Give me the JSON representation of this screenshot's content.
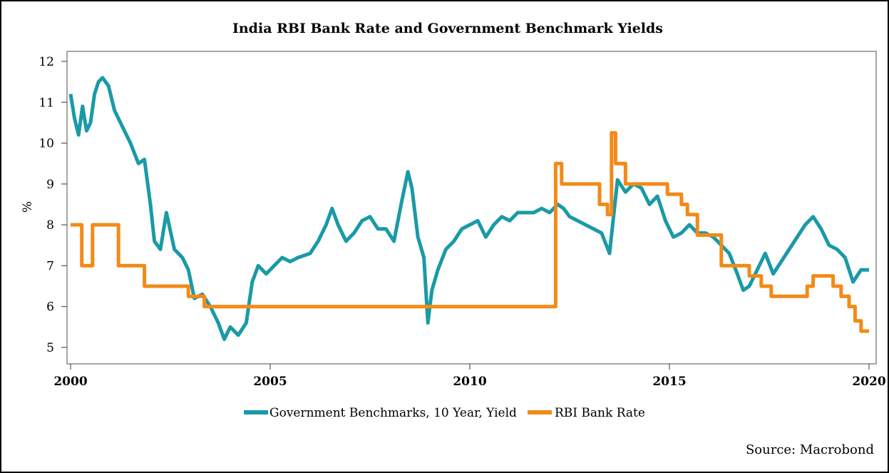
{
  "chart_data": {
    "type": "line",
    "title": "India RBI Bank Rate and Government Benchmark Yields",
    "ylabel": "%",
    "xlabel": "",
    "xlim": [
      2000,
      2020
    ],
    "ylim": [
      4.8,
      12.3
    ],
    "x_ticks": [
      2000,
      2005,
      2010,
      2015,
      2020
    ],
    "x_tick_labels": [
      "2000",
      "2005",
      "2010",
      "2015",
      "2020"
    ],
    "y_ticks": [
      5,
      6,
      7,
      8,
      9,
      10,
      11,
      12
    ],
    "y_tick_labels": [
      "5",
      "6",
      "7",
      "8",
      "9",
      "10",
      "11",
      "12"
    ],
    "grid": false,
    "legend_position": "bottom",
    "source": "Source: Macrobond",
    "series": [
      {
        "name": "Government Benchmarks, 10 Year, Yield",
        "color": "#1a9aa6",
        "step": false,
        "x": [
          2000.0,
          2000.1,
          2000.2,
          2000.3,
          2000.4,
          2000.5,
          2000.6,
          2000.7,
          2000.8,
          2000.95,
          2001.1,
          2001.3,
          2001.5,
          2001.7,
          2001.85,
          2002.0,
          2002.1,
          2002.25,
          2002.4,
          2002.6,
          2002.8,
          2002.95,
          2003.1,
          2003.3,
          2003.5,
          2003.7,
          2003.85,
          2004.0,
          2004.2,
          2004.4,
          2004.55,
          2004.7,
          2004.9,
          2005.1,
          2005.3,
          2005.5,
          2005.7,
          2006.0,
          2006.2,
          2006.4,
          2006.55,
          2006.7,
          2006.9,
          2007.1,
          2007.3,
          2007.5,
          2007.7,
          2007.9,
          2008.1,
          2008.3,
          2008.45,
          2008.55,
          2008.7,
          2008.85,
          2008.95,
          2009.05,
          2009.2,
          2009.4,
          2009.6,
          2009.8,
          2010.0,
          2010.2,
          2010.4,
          2010.6,
          2010.8,
          2011.0,
          2011.2,
          2011.4,
          2011.6,
          2011.8,
          2012.0,
          2012.2,
          2012.35,
          2012.5,
          2012.7,
          2012.9,
          2013.1,
          2013.3,
          2013.5,
          2013.6,
          2013.7,
          2013.9,
          2014.1,
          2014.3,
          2014.5,
          2014.7,
          2014.9,
          2015.1,
          2015.3,
          2015.5,
          2015.7,
          2015.9,
          2016.1,
          2016.3,
          2016.5,
          2016.7,
          2016.85,
          2017.0,
          2017.2,
          2017.4,
          2017.6,
          2017.8,
          2018.0,
          2018.2,
          2018.4,
          2018.6,
          2018.8,
          2019.0,
          2019.2,
          2019.4,
          2019.6,
          2019.8,
          2020.0
        ],
        "values": [
          11.2,
          10.6,
          10.2,
          10.9,
          10.3,
          10.5,
          11.2,
          11.5,
          11.6,
          11.4,
          10.8,
          10.4,
          10.0,
          9.5,
          9.6,
          8.5,
          7.6,
          7.4,
          8.3,
          7.4,
          7.2,
          6.9,
          6.2,
          6.3,
          6.0,
          5.6,
          5.2,
          5.5,
          5.3,
          5.6,
          6.6,
          7.0,
          6.8,
          7.0,
          7.2,
          7.1,
          7.2,
          7.3,
          7.6,
          8.0,
          8.4,
          8.0,
          7.6,
          7.8,
          8.1,
          8.2,
          7.9,
          7.9,
          7.6,
          8.6,
          9.3,
          8.9,
          7.7,
          7.2,
          5.6,
          6.4,
          6.9,
          7.4,
          7.6,
          7.9,
          8.0,
          8.1,
          7.7,
          8.0,
          8.2,
          8.1,
          8.3,
          8.3,
          8.3,
          8.4,
          8.3,
          8.5,
          8.4,
          8.2,
          8.1,
          8.0,
          7.9,
          7.8,
          7.3,
          8.2,
          9.1,
          8.8,
          9.0,
          8.9,
          8.5,
          8.7,
          8.1,
          7.7,
          7.8,
          8.0,
          7.8,
          7.8,
          7.7,
          7.5,
          7.3,
          6.8,
          6.4,
          6.5,
          6.9,
          7.3,
          6.8,
          7.1,
          7.4,
          7.7,
          8.0,
          8.2,
          7.9,
          7.5,
          7.4,
          7.2,
          6.6,
          6.9,
          6.9
        ]
      },
      {
        "name": "RBI Bank Rate",
        "color": "#f28a17",
        "step": true,
        "x": [
          2000.0,
          2000.28,
          2000.55,
          2001.2,
          2001.85,
          2002.7,
          2002.95,
          2003.35,
          2012.15,
          2012.3,
          2012.55,
          2013.25,
          2013.45,
          2013.55,
          2013.65,
          2013.9,
          2014.0,
          2014.95,
          2015.3,
          2015.45,
          2015.7,
          2016.3,
          2017.0,
          2017.3,
          2017.55,
          2017.7,
          2018.45,
          2018.6,
          2019.1,
          2019.3,
          2019.5,
          2019.65,
          2019.8,
          2020.0
        ],
        "values": [
          8.0,
          7.0,
          8.0,
          7.0,
          6.5,
          6.5,
          6.25,
          6.0,
          9.5,
          9.0,
          9.0,
          8.5,
          8.25,
          10.25,
          9.5,
          9.0,
          9.0,
          8.75,
          8.5,
          8.25,
          7.75,
          7.0,
          6.75,
          6.5,
          6.25,
          6.25,
          6.5,
          6.75,
          6.5,
          6.25,
          6.0,
          5.65,
          5.4,
          5.4
        ]
      }
    ]
  }
}
